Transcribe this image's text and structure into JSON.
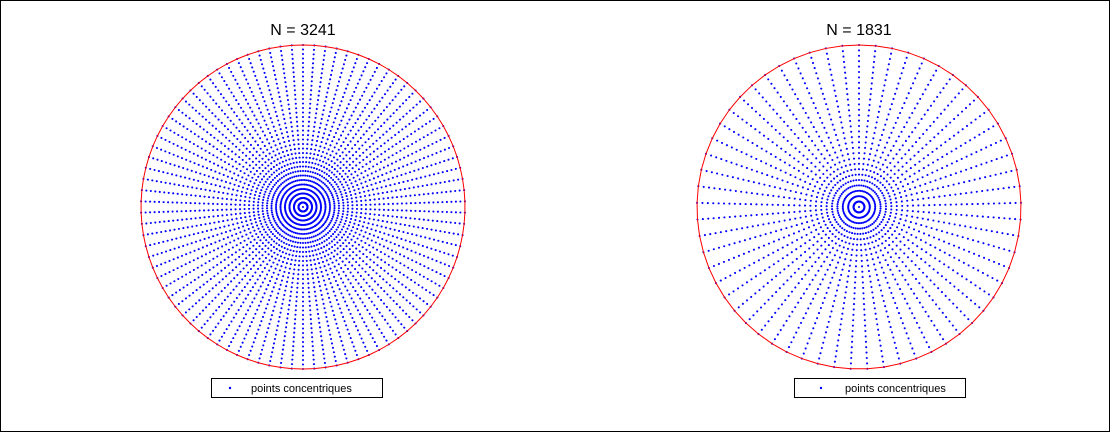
{
  "colors": {
    "points": "#0000ff",
    "boundary": "#ff0000",
    "frame": "#000000",
    "background": "#ffffff"
  },
  "chart_data": [
    {
      "type": "scatter",
      "title": "N = 3241",
      "xlabel": "",
      "ylabel": "",
      "n_points": 3241,
      "rings": 36,
      "points_per_ring": 90,
      "center_point": true,
      "boundary_polygon_vertices": 90,
      "xlim": [
        -1,
        1
      ],
      "ylim": [
        -1,
        1
      ],
      "grid": false,
      "axes_visible": false,
      "legend": {
        "entries": [
          "points concentriques"
        ],
        "placement": "bottom"
      }
    },
    {
      "type": "scatter",
      "title": "N = 1831",
      "xlabel": "",
      "ylabel": "",
      "n_points": 1831,
      "rings": 30,
      "points_per_ring": 61,
      "center_point": true,
      "boundary_polygon_vertices": 61,
      "xlim": [
        -1,
        1
      ],
      "ylim": [
        -1,
        1
      ],
      "grid": false,
      "axes_visible": false,
      "legend": {
        "entries": [
          "points concentriques"
        ],
        "placement": "bottom"
      }
    }
  ]
}
